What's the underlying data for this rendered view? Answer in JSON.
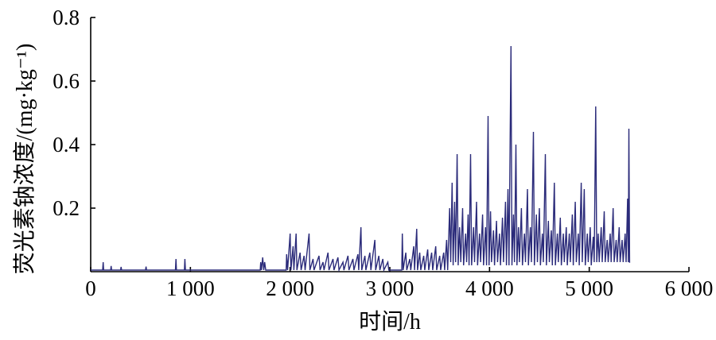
{
  "chart_data": {
    "type": "line",
    "title": "",
    "xlabel": "时间/h",
    "ylabel": "荧光素钠浓度/(mg·kg⁻¹)",
    "xlim": [
      0,
      6000
    ],
    "ylim": [
      0,
      0.8
    ],
    "xticks": [
      0,
      1000,
      2000,
      3000,
      4000,
      5000,
      6000
    ],
    "xtick_labels": [
      "0",
      "1 000",
      "2 000",
      "3 000",
      "4 000",
      "5 000",
      "6 000"
    ],
    "yticks": [
      0.2,
      0.4,
      0.6,
      0.8
    ],
    "ytick_labels": [
      "0.2",
      "0.4",
      "0.6",
      "0.8"
    ],
    "grid": false,
    "legend": "none",
    "line_color": "#2b2b7a",
    "series": [
      {
        "values": [
          [
            0,
            0.005
          ],
          [
            120,
            0.005
          ],
          [
            125,
            0.03
          ],
          [
            130,
            0.005
          ],
          [
            200,
            0.005
          ],
          [
            205,
            0.018
          ],
          [
            210,
            0.005
          ],
          [
            300,
            0.005
          ],
          [
            305,
            0.015
          ],
          [
            310,
            0.005
          ],
          [
            550,
            0.005
          ],
          [
            555,
            0.016
          ],
          [
            560,
            0.005
          ],
          [
            850,
            0.005
          ],
          [
            855,
            0.04
          ],
          [
            860,
            0.005
          ],
          [
            940,
            0.005
          ],
          [
            945,
            0.04
          ],
          [
            950,
            0.005
          ],
          [
            1700,
            0.005
          ],
          [
            1705,
            0.03
          ],
          [
            1712,
            0.005
          ],
          [
            1725,
            0.045
          ],
          [
            1735,
            0.005
          ],
          [
            1745,
            0.03
          ],
          [
            1755,
            0.005
          ],
          [
            1960,
            0.005
          ],
          [
            1965,
            0.055
          ],
          [
            1975,
            0.005
          ],
          [
            2000,
            0.12
          ],
          [
            2008,
            0.005
          ],
          [
            2030,
            0.08
          ],
          [
            2038,
            0.005
          ],
          [
            2060,
            0.12
          ],
          [
            2068,
            0.005
          ],
          [
            2100,
            0.06
          ],
          [
            2110,
            0.005
          ],
          [
            2140,
            0.05
          ],
          [
            2150,
            0.005
          ],
          [
            2190,
            0.12
          ],
          [
            2198,
            0.005
          ],
          [
            2230,
            0.04
          ],
          [
            2240,
            0.005
          ],
          [
            2290,
            0.05
          ],
          [
            2300,
            0.005
          ],
          [
            2330,
            0.03
          ],
          [
            2340,
            0.005
          ],
          [
            2380,
            0.06
          ],
          [
            2390,
            0.005
          ],
          [
            2430,
            0.04
          ],
          [
            2440,
            0.005
          ],
          [
            2480,
            0.045
          ],
          [
            2490,
            0.005
          ],
          [
            2530,
            0.03
          ],
          [
            2540,
            0.005
          ],
          [
            2580,
            0.05
          ],
          [
            2590,
            0.005
          ],
          [
            2630,
            0.04
          ],
          [
            2640,
            0.005
          ],
          [
            2680,
            0.055
          ],
          [
            2688,
            0.005
          ],
          [
            2710,
            0.14
          ],
          [
            2718,
            0.005
          ],
          [
            2750,
            0.05
          ],
          [
            2760,
            0.005
          ],
          [
            2800,
            0.06
          ],
          [
            2810,
            0.005
          ],
          [
            2850,
            0.1
          ],
          [
            2858,
            0.005
          ],
          [
            2890,
            0.05
          ],
          [
            2900,
            0.005
          ],
          [
            2930,
            0.04
          ],
          [
            2940,
            0.005
          ],
          [
            2980,
            0.03
          ],
          [
            2990,
            0.005
          ],
          [
            3120,
            0.005
          ],
          [
            3125,
            0.12
          ],
          [
            3133,
            0.005
          ],
          [
            3160,
            0.06
          ],
          [
            3170,
            0.005
          ],
          [
            3200,
            0.04
          ],
          [
            3210,
            0.005
          ],
          [
            3240,
            0.08
          ],
          [
            3248,
            0.005
          ],
          [
            3270,
            0.135
          ],
          [
            3278,
            0.005
          ],
          [
            3300,
            0.06
          ],
          [
            3310,
            0.005
          ],
          [
            3340,
            0.05
          ],
          [
            3350,
            0.005
          ],
          [
            3380,
            0.07
          ],
          [
            3390,
            0.005
          ],
          [
            3420,
            0.06
          ],
          [
            3430,
            0.005
          ],
          [
            3460,
            0.08
          ],
          [
            3470,
            0.005
          ],
          [
            3500,
            0.05
          ],
          [
            3510,
            0.005
          ],
          [
            3540,
            0.06
          ],
          [
            3550,
            0.005
          ],
          [
            3570,
            0.1
          ],
          [
            3580,
            0.005
          ],
          [
            3600,
            0.2
          ],
          [
            3610,
            0.03
          ],
          [
            3625,
            0.28
          ],
          [
            3635,
            0.02
          ],
          [
            3650,
            0.22
          ],
          [
            3660,
            0.03
          ],
          [
            3675,
            0.37
          ],
          [
            3685,
            0.02
          ],
          [
            3700,
            0.14
          ],
          [
            3712,
            0.03
          ],
          [
            3730,
            0.2
          ],
          [
            3740,
            0.02
          ],
          [
            3760,
            0.12
          ],
          [
            3770,
            0.03
          ],
          [
            3785,
            0.18
          ],
          [
            3795,
            0.02
          ],
          [
            3810,
            0.37
          ],
          [
            3820,
            0.02
          ],
          [
            3840,
            0.14
          ],
          [
            3850,
            0.03
          ],
          [
            3870,
            0.22
          ],
          [
            3880,
            0.02
          ],
          [
            3900,
            0.12
          ],
          [
            3910,
            0.03
          ],
          [
            3930,
            0.18
          ],
          [
            3940,
            0.02
          ],
          [
            3960,
            0.14
          ],
          [
            3970,
            0.02
          ],
          [
            3985,
            0.49
          ],
          [
            3995,
            0.02
          ],
          [
            4010,
            0.19
          ],
          [
            4020,
            0.03
          ],
          [
            4040,
            0.13
          ],
          [
            4050,
            0.02
          ],
          [
            4070,
            0.16
          ],
          [
            4080,
            0.03
          ],
          [
            4100,
            0.12
          ],
          [
            4110,
            0.02
          ],
          [
            4130,
            0.17
          ],
          [
            4140,
            0.03
          ],
          [
            4160,
            0.22
          ],
          [
            4170,
            0.02
          ],
          [
            4185,
            0.26
          ],
          [
            4195,
            0.02
          ],
          [
            4215,
            0.71
          ],
          [
            4225,
            0.02
          ],
          [
            4240,
            0.18
          ],
          [
            4250,
            0.03
          ],
          [
            4265,
            0.4
          ],
          [
            4275,
            0.02
          ],
          [
            4290,
            0.14
          ],
          [
            4300,
            0.03
          ],
          [
            4320,
            0.2
          ],
          [
            4330,
            0.02
          ],
          [
            4350,
            0.12
          ],
          [
            4360,
            0.03
          ],
          [
            4380,
            0.26
          ],
          [
            4390,
            0.02
          ],
          [
            4410,
            0.14
          ],
          [
            4420,
            0.03
          ],
          [
            4440,
            0.44
          ],
          [
            4450,
            0.02
          ],
          [
            4470,
            0.18
          ],
          [
            4480,
            0.03
          ],
          [
            4500,
            0.2
          ],
          [
            4510,
            0.02
          ],
          [
            4530,
            0.12
          ],
          [
            4540,
            0.03
          ],
          [
            4560,
            0.37
          ],
          [
            4570,
            0.02
          ],
          [
            4590,
            0.16
          ],
          [
            4600,
            0.03
          ],
          [
            4620,
            0.13
          ],
          [
            4630,
            0.02
          ],
          [
            4650,
            0.28
          ],
          [
            4660,
            0.02
          ],
          [
            4680,
            0.12
          ],
          [
            4690,
            0.03
          ],
          [
            4710,
            0.17
          ],
          [
            4720,
            0.02
          ],
          [
            4740,
            0.12
          ],
          [
            4750,
            0.03
          ],
          [
            4770,
            0.14
          ],
          [
            4780,
            0.02
          ],
          [
            4800,
            0.12
          ],
          [
            4810,
            0.03
          ],
          [
            4830,
            0.18
          ],
          [
            4840,
            0.02
          ],
          [
            4860,
            0.22
          ],
          [
            4870,
            0.03
          ],
          [
            4890,
            0.12
          ],
          [
            4900,
            0.02
          ],
          [
            4920,
            0.28
          ],
          [
            4930,
            0.03
          ],
          [
            4950,
            0.26
          ],
          [
            4960,
            0.02
          ],
          [
            4980,
            0.12
          ],
          [
            4990,
            0.03
          ],
          [
            5010,
            0.14
          ],
          [
            5020,
            0.02
          ],
          [
            5040,
            0.11
          ],
          [
            5050,
            0.03
          ],
          [
            5065,
            0.52
          ],
          [
            5075,
            0.03
          ],
          [
            5090,
            0.12
          ],
          [
            5100,
            0.03
          ],
          [
            5120,
            0.14
          ],
          [
            5130,
            0.03
          ],
          [
            5150,
            0.19
          ],
          [
            5160,
            0.03
          ],
          [
            5180,
            0.1
          ],
          [
            5190,
            0.03
          ],
          [
            5210,
            0.12
          ],
          [
            5220,
            0.03
          ],
          [
            5240,
            0.2
          ],
          [
            5250,
            0.03
          ],
          [
            5270,
            0.1
          ],
          [
            5280,
            0.03
          ],
          [
            5300,
            0.14
          ],
          [
            5310,
            0.03
          ],
          [
            5330,
            0.1
          ],
          [
            5340,
            0.03
          ],
          [
            5360,
            0.12
          ],
          [
            5370,
            0.03
          ],
          [
            5385,
            0.23
          ],
          [
            5392,
            0.03
          ],
          [
            5398,
            0.45
          ],
          [
            5405,
            0.03
          ],
          [
            5410,
            0.03
          ]
        ]
      }
    ]
  }
}
